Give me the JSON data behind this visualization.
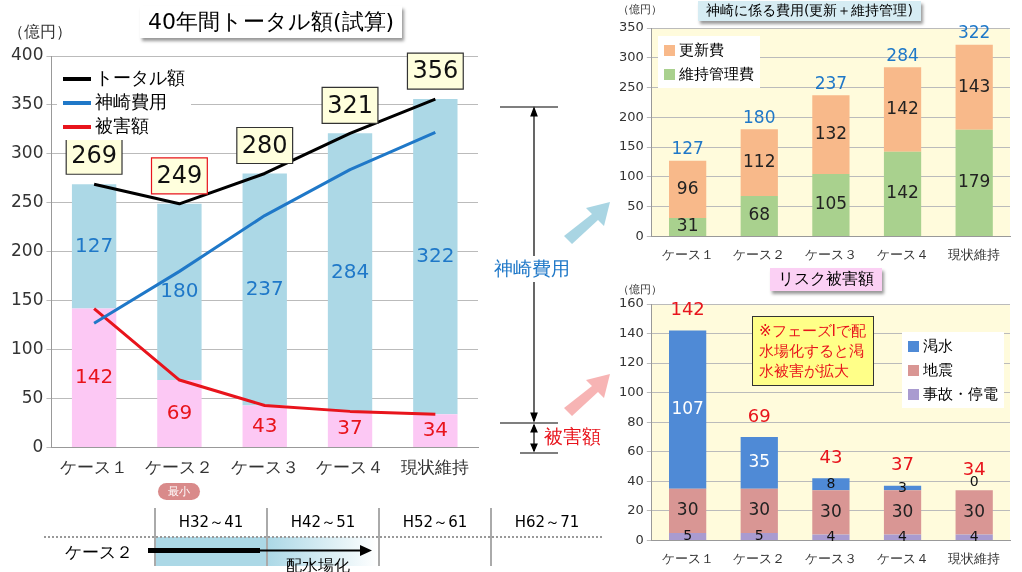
{
  "chart_data": [
    {
      "type": "bar",
      "stacked": true,
      "title": "40年間トータル額(試算)",
      "ylabel": "（億円）",
      "categories": [
        "ケース１",
        "ケース２",
        "ケース３",
        "ケース４",
        "現状維持"
      ],
      "series": [
        {
          "color": "#fcc8f4",
          "values": [
            142,
            69,
            43,
            37,
            34
          ],
          "value_labels": [
            "142",
            "69",
            "43",
            "37",
            "34"
          ]
        },
        {
          "color": "#acd8e6",
          "values": [
            127,
            180,
            237,
            284,
            322
          ],
          "value_labels": [
            "127",
            "180",
            "237",
            "284",
            "322"
          ]
        },
        {
          "type": "line",
          "name": "トータル額",
          "color": "#000000",
          "values": [
            269,
            249,
            280,
            321,
            356
          ]
        },
        {
          "type": "line",
          "name": "神崎費用",
          "color": "#1f78c8",
          "values": [
            127,
            180,
            237,
            284,
            322
          ]
        },
        {
          "type": "line",
          "name": "被害額",
          "color": "#e8141c",
          "values": [
            142,
            69,
            43,
            37,
            34
          ]
        }
      ],
      "totals": [
        "269",
        "249",
        "280",
        "321",
        "356"
      ],
      "ylim": [
        0,
        400
      ],
      "yticks": [
        0,
        50,
        100,
        150,
        200,
        250,
        300,
        350,
        400
      ],
      "grid": "y",
      "legend": "top left",
      "marker": "none",
      "annotations": [
        "最小",
        "神崎費用",
        "被害額"
      ]
    },
    {
      "type": "bar",
      "stacked": true,
      "title": "神崎に係る費用(更新＋維持管理)",
      "ylabel": "（億円）",
      "categories": [
        "ケース１",
        "ケース２",
        "ケース３",
        "ケース４",
        "現状維持"
      ],
      "series": [
        {
          "name": "維持管理費",
          "color": "#a9d18e",
          "values": [
            31,
            68,
            105,
            142,
            179
          ],
          "value_labels": [
            "31",
            "68",
            "105",
            "142",
            "179"
          ]
        },
        {
          "name": "更新費",
          "color": "#f8b98a",
          "values": [
            96,
            112,
            132,
            142,
            143
          ],
          "value_labels": [
            "96",
            "112",
            "132",
            "142",
            "143"
          ]
        }
      ],
      "totals": [
        "127",
        "180",
        "237",
        "284",
        "322"
      ],
      "ylim": [
        0,
        350
      ],
      "yticks": [
        0,
        50,
        100,
        150,
        200,
        250,
        300,
        350
      ],
      "grid": "y",
      "legend": "top left"
    },
    {
      "type": "bar",
      "stacked": true,
      "title": "リスク被害額",
      "ylabel": "（億円）",
      "categories": [
        "ケース１",
        "ケース２",
        "ケース３",
        "ケース４",
        "現状維持"
      ],
      "series": [
        {
          "name": "事故・停電",
          "color": "#a99bd0",
          "values": [
            5,
            5,
            4,
            4,
            4
          ],
          "value_labels": [
            "5",
            "5",
            "4",
            "4",
            "4"
          ]
        },
        {
          "name": "地震",
          "color": "#d99694",
          "values": [
            30,
            30,
            30,
            30,
            30
          ],
          "value_labels": [
            "30",
            "30",
            "30",
            "30",
            "30"
          ]
        },
        {
          "name": "渇水",
          "color": "#4f8ad6",
          "values": [
            107,
            35,
            8,
            3,
            0
          ],
          "value_labels": [
            "107",
            "35",
            "8",
            "3",
            "0"
          ]
        }
      ],
      "totals": [
        "142",
        "69",
        "43",
        "37",
        "34"
      ],
      "ylim": [
        0,
        160
      ],
      "yticks": [
        0,
        20,
        40,
        60,
        80,
        100,
        120,
        140,
        160
      ],
      "grid": "y",
      "legend": "top right",
      "annotations": [
        "※フェーズⅠで配水場化すると渇水被害が拡大"
      ]
    },
    {
      "type": "other",
      "categories": [
        "H32～41",
        "H42～51",
        "H52～61",
        "H62～71"
      ],
      "y_categories": [
        "ケース２"
      ],
      "annotations": [
        "配水場化"
      ]
    }
  ]
}
